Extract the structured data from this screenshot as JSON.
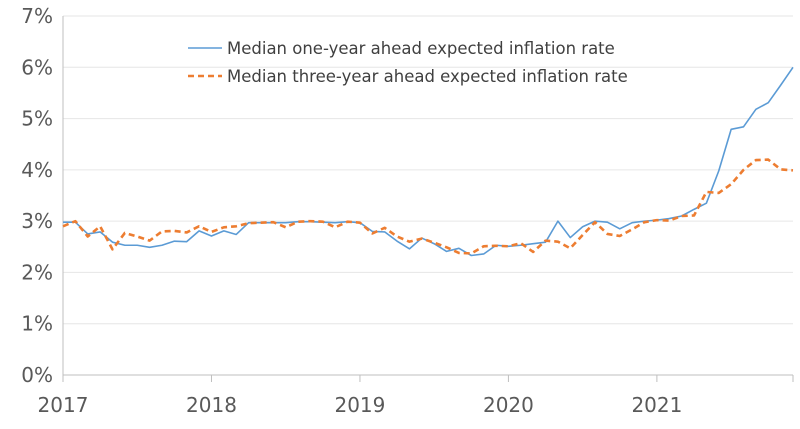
{
  "chart_data": {
    "type": "line",
    "title": "",
    "xlabel": "",
    "ylabel": "",
    "ylim": [
      0,
      7
    ],
    "xlim": [
      "2017-01",
      "2021-12"
    ],
    "yticks": [
      "0%",
      "1%",
      "2%",
      "3%",
      "4%",
      "5%",
      "6%",
      "7%"
    ],
    "xticks": [
      "2017",
      "2018",
      "2019",
      "2020",
      "2021"
    ],
    "grid": true,
    "legend_position": "top-center",
    "x": [
      "2017-01",
      "2017-02",
      "2017-03",
      "2017-04",
      "2017-05",
      "2017-06",
      "2017-07",
      "2017-08",
      "2017-09",
      "2017-10",
      "2017-11",
      "2017-12",
      "2018-01",
      "2018-02",
      "2018-03",
      "2018-04",
      "2018-05",
      "2018-06",
      "2018-07",
      "2018-08",
      "2018-09",
      "2018-10",
      "2018-11",
      "2018-12",
      "2019-01",
      "2019-02",
      "2019-03",
      "2019-04",
      "2019-05",
      "2019-06",
      "2019-07",
      "2019-08",
      "2019-09",
      "2019-10",
      "2019-11",
      "2019-12",
      "2020-01",
      "2020-02",
      "2020-03",
      "2020-04",
      "2020-05",
      "2020-06",
      "2020-07",
      "2020-08",
      "2020-09",
      "2020-10",
      "2020-11",
      "2020-12",
      "2021-01",
      "2021-02",
      "2021-03",
      "2021-04",
      "2021-05",
      "2021-06",
      "2021-07",
      "2021-08",
      "2021-09",
      "2021-10",
      "2021-11",
      "2021-12"
    ],
    "series": [
      {
        "name": "Median one-year ahead expected inflation rate",
        "color": "#5b9bd5",
        "style": "solid",
        "values": [
          2.98,
          2.98,
          2.75,
          2.79,
          2.59,
          2.53,
          2.53,
          2.49,
          2.53,
          2.61,
          2.6,
          2.81,
          2.71,
          2.81,
          2.74,
          2.97,
          2.97,
          2.97,
          2.97,
          2.99,
          2.99,
          2.98,
          2.97,
          2.99,
          2.97,
          2.8,
          2.79,
          2.61,
          2.46,
          2.67,
          2.56,
          2.41,
          2.47,
          2.33,
          2.36,
          2.53,
          2.51,
          2.53,
          2.56,
          2.59,
          3.0,
          2.68,
          2.89,
          3.0,
          2.98,
          2.85,
          2.97,
          3.0,
          3.02,
          3.05,
          3.1,
          3.23,
          3.35,
          3.98,
          4.79,
          4.84,
          5.18,
          5.31,
          5.65,
          6.0
        ]
      },
      {
        "name": "Median three-year ahead expected inflation rate",
        "color": "#ed7d31",
        "style": "dashed",
        "values": [
          2.9,
          3.0,
          2.7,
          2.9,
          2.45,
          2.77,
          2.7,
          2.62,
          2.8,
          2.81,
          2.78,
          2.9,
          2.79,
          2.88,
          2.9,
          2.96,
          2.97,
          2.98,
          2.88,
          2.99,
          3.0,
          2.99,
          2.88,
          2.99,
          2.97,
          2.76,
          2.87,
          2.7,
          2.6,
          2.66,
          2.58,
          2.49,
          2.38,
          2.37,
          2.51,
          2.52,
          2.51,
          2.57,
          2.4,
          2.62,
          2.6,
          2.47,
          2.73,
          2.98,
          2.75,
          2.71,
          2.84,
          2.98,
          3.02,
          3.01,
          3.1,
          3.11,
          3.57,
          3.55,
          3.72,
          4.0,
          4.19,
          4.2,
          4.01,
          3.99
        ]
      }
    ]
  }
}
